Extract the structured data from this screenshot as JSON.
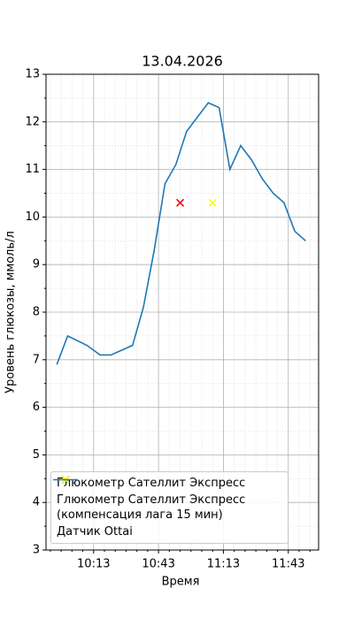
{
  "chart_data": {
    "type": "line",
    "title": "13.04.2026",
    "x_label": "Время",
    "y_label": "Уровень глюкозы, ммоль/л",
    "xlim": [
      "09:51",
      "11:57"
    ],
    "xticks": [
      "10:13",
      "10:43",
      "11:13",
      "11:43"
    ],
    "x_minor_ticks": [
      "09:53",
      "09:58",
      "10:03",
      "10:08",
      "10:18",
      "10:23",
      "10:28",
      "10:33",
      "10:38",
      "10:48",
      "10:53",
      "10:58",
      "11:03",
      "11:08",
      "11:18",
      "11:23",
      "11:28",
      "11:33",
      "11:38",
      "11:48",
      "11:53"
    ],
    "ylim": [
      3,
      13
    ],
    "yticks": [
      3,
      4,
      5,
      6,
      7,
      8,
      9,
      10,
      11,
      12,
      13
    ],
    "y_minor_ticks": [
      3.5,
      4.5,
      5.5,
      6.5,
      7.5,
      8.5,
      9.5,
      10.5,
      11.5,
      12.5
    ],
    "grid": true,
    "legend": "lower left",
    "series": [
      {
        "name": "Глюкометр Сателлит Экспресс",
        "type": "scatter",
        "marker": "x",
        "color": "#ff0000",
        "x": [
          "10:53"
        ],
        "values": [
          10.3
        ]
      },
      {
        "name": "Глюкометр Сателлит Экспресс\n(компенсация лага 15 мин)",
        "type": "scatter",
        "marker": "x",
        "color": "#ffff00",
        "x": [
          "11:08"
        ],
        "values": [
          10.3
        ]
      },
      {
        "name": "Датчик Ottai",
        "type": "line",
        "color": "#1f77b4",
        "x": [
          "09:56",
          "10:01",
          "10:10",
          "10:16",
          "10:21",
          "10:31",
          "10:36",
          "10:41",
          "10:46",
          "10:51",
          "10:56",
          "11:06",
          "11:11",
          "11:16",
          "11:21",
          "11:26",
          "11:31",
          "11:36",
          "11:41",
          "11:46",
          "11:51"
        ],
        "values": [
          6.9,
          7.5,
          7.3,
          7.1,
          7.1,
          7.3,
          8.1,
          9.3,
          10.7,
          11.1,
          11.8,
          12.4,
          12.3,
          11.0,
          11.5,
          11.2,
          10.8,
          10.5,
          10.3,
          9.7,
          9.5
        ]
      }
    ]
  }
}
